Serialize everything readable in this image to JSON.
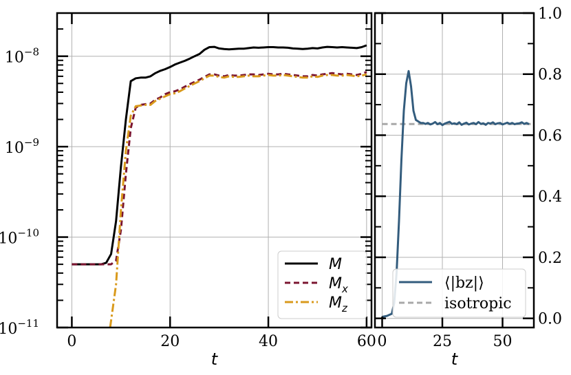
{
  "chart_data": [
    {
      "type": "line",
      "xlabel": "t",
      "ylabel": "",
      "xlim": [
        -3,
        61
      ],
      "ylim": [
        1e-11,
        3e-08
      ],
      "yscale": "log",
      "grid": true,
      "legend_position": "bottom-right",
      "xticks": [
        0,
        20,
        40,
        60
      ],
      "xtick_labels": [
        "0",
        "20",
        "40",
        "60"
      ],
      "ytick_labels": [
        {
          "value": 1e-11,
          "base": "10",
          "exp": "−11"
        },
        {
          "value": 1e-10,
          "base": "10",
          "exp": "−10"
        },
        {
          "value": 1e-09,
          "base": "10",
          "exp": "−9"
        },
        {
          "value": 1e-08,
          "base": "10",
          "exp": "−8"
        }
      ],
      "series": [
        {
          "name": "M",
          "legend_base": "M",
          "legend_sub": "",
          "color": "#000000",
          "dash": "solid",
          "points": [
            [
              0,
              5e-11
            ],
            [
              6,
              5e-11
            ],
            [
              7,
              5.2e-11
            ],
            [
              8,
              6.5e-11
            ],
            [
              9,
              1.5e-10
            ],
            [
              10,
              6e-10
            ],
            [
              11,
              2e-09
            ],
            [
              12,
              5.3e-09
            ],
            [
              13,
              5.7e-09
            ],
            [
              14,
              5.8e-09
            ],
            [
              15,
              5.8e-09
            ],
            [
              16,
              6e-09
            ],
            [
              17,
              6.5e-09
            ],
            [
              18,
              6.9e-09
            ],
            [
              19,
              7.2e-09
            ],
            [
              20,
              7.6e-09
            ],
            [
              21,
              8.1e-09
            ],
            [
              22,
              8.5e-09
            ],
            [
              23,
              8.9e-09
            ],
            [
              24,
              9.4e-09
            ],
            [
              25,
              1e-08
            ],
            [
              26,
              1.06e-08
            ],
            [
              27,
              1.18e-08
            ],
            [
              28,
              1.26e-08
            ],
            [
              29,
              1.27e-08
            ],
            [
              30,
              1.22e-08
            ],
            [
              31,
              1.2e-08
            ],
            [
              32,
              1.19e-08
            ],
            [
              33,
              1.2e-08
            ],
            [
              34,
              1.21e-08
            ],
            [
              35,
              1.21e-08
            ],
            [
              36,
              1.23e-08
            ],
            [
              37,
              1.25e-08
            ],
            [
              38,
              1.24e-08
            ],
            [
              39,
              1.25e-08
            ],
            [
              40,
              1.26e-08
            ],
            [
              41,
              1.26e-08
            ],
            [
              42,
              1.25e-08
            ],
            [
              43,
              1.25e-08
            ],
            [
              44,
              1.24e-08
            ],
            [
              45,
              1.22e-08
            ],
            [
              46,
              1.21e-08
            ],
            [
              47,
              1.2e-08
            ],
            [
              48,
              1.21e-08
            ],
            [
              49,
              1.23e-08
            ],
            [
              50,
              1.22e-08
            ],
            [
              51,
              1.25e-08
            ],
            [
              52,
              1.27e-08
            ],
            [
              53,
              1.26e-08
            ],
            [
              54,
              1.25e-08
            ],
            [
              55,
              1.26e-08
            ],
            [
              56,
              1.25e-08
            ],
            [
              57,
              1.24e-08
            ],
            [
              58,
              1.23e-08
            ],
            [
              59,
              1.26e-08
            ],
            [
              60,
              1.32e-08
            ]
          ]
        },
        {
          "name": "M_x",
          "legend_base": "M",
          "legend_sub": "x",
          "color": "#7b1530",
          "dash": "8,5",
          "points": [
            [
              0,
              5e-11
            ],
            [
              6,
              5e-11
            ],
            [
              8,
              5e-11
            ],
            [
              9,
              5.5e-11
            ],
            [
              10,
              1.2e-10
            ],
            [
              11,
              5e-10
            ],
            [
              12,
              1.6e-09
            ],
            [
              13,
              2.7e-09
            ],
            [
              14,
              2.9e-09
            ],
            [
              15,
              2.95e-09
            ],
            [
              16,
              3e-09
            ],
            [
              17,
              3.3e-09
            ],
            [
              18,
              3.5e-09
            ],
            [
              19,
              3.8e-09
            ],
            [
              20,
              4e-09
            ],
            [
              21,
              4.1e-09
            ],
            [
              22,
              4.3e-09
            ],
            [
              23,
              4.6e-09
            ],
            [
              24,
              4.9e-09
            ],
            [
              25,
              5.2e-09
            ],
            [
              26,
              5.5e-09
            ],
            [
              27,
              5.9e-09
            ],
            [
              28,
              6.3e-09
            ],
            [
              29,
              6.3e-09
            ],
            [
              30,
              6.1e-09
            ],
            [
              31,
              6e-09
            ],
            [
              32,
              6.2e-09
            ],
            [
              33,
              6.1e-09
            ],
            [
              34,
              6.1e-09
            ],
            [
              35,
              6.2e-09
            ],
            [
              36,
              6.3e-09
            ],
            [
              37,
              6.3e-09
            ],
            [
              38,
              6.2e-09
            ],
            [
              39,
              6.3e-09
            ],
            [
              40,
              6.4e-09
            ],
            [
              41,
              6.3e-09
            ],
            [
              42,
              6.3e-09
            ],
            [
              43,
              6.4e-09
            ],
            [
              44,
              6.3e-09
            ],
            [
              45,
              6.2e-09
            ],
            [
              46,
              6.1e-09
            ],
            [
              47,
              6e-09
            ],
            [
              48,
              6e-09
            ],
            [
              49,
              6.2e-09
            ],
            [
              50,
              6.1e-09
            ],
            [
              51,
              6.3e-09
            ],
            [
              52,
              6.4e-09
            ],
            [
              53,
              6.5e-09
            ],
            [
              54,
              6.4e-09
            ],
            [
              55,
              6.3e-09
            ],
            [
              56,
              6.4e-09
            ],
            [
              57,
              6.3e-09
            ],
            [
              58,
              6.2e-09
            ],
            [
              59,
              6.4e-09
            ],
            [
              60,
              6.7e-09
            ]
          ]
        },
        {
          "name": "M_z",
          "legend_base": "M",
          "legend_sub": "z",
          "color": "#d99a1c",
          "dash": "12,4,3,4",
          "points": [
            [
              7.8,
              1e-11
            ],
            [
              9,
              3e-11
            ],
            [
              10,
              2e-10
            ],
            [
              11,
              9e-10
            ],
            [
              12,
              2.2e-09
            ],
            [
              13,
              2.8e-09
            ],
            [
              14,
              2.85e-09
            ],
            [
              15,
              2.9e-09
            ],
            [
              16,
              2.9e-09
            ],
            [
              17,
              3.2e-09
            ],
            [
              18,
              3.4e-09
            ],
            [
              19,
              3.6e-09
            ],
            [
              20,
              3.8e-09
            ],
            [
              21,
              3.9e-09
            ],
            [
              22,
              4.1e-09
            ],
            [
              23,
              4.4e-09
            ],
            [
              24,
              4.7e-09
            ],
            [
              25,
              5e-09
            ],
            [
              26,
              5.3e-09
            ],
            [
              27,
              5.7e-09
            ],
            [
              28,
              6.1e-09
            ],
            [
              29,
              6.1e-09
            ],
            [
              30,
              5.9e-09
            ],
            [
              31,
              5.8e-09
            ],
            [
              32,
              6e-09
            ],
            [
              33,
              5.9e-09
            ],
            [
              34,
              5.9e-09
            ],
            [
              35,
              6e-09
            ],
            [
              36,
              6.1e-09
            ],
            [
              37,
              6e-09
            ],
            [
              38,
              6e-09
            ],
            [
              39,
              6.1e-09
            ],
            [
              40,
              6.2e-09
            ],
            [
              41,
              6.1e-09
            ],
            [
              42,
              6.1e-09
            ],
            [
              43,
              6.2e-09
            ],
            [
              44,
              6.1e-09
            ],
            [
              45,
              6e-09
            ],
            [
              46,
              5.9e-09
            ],
            [
              47,
              5.8e-09
            ],
            [
              48,
              5.8e-09
            ],
            [
              49,
              6e-09
            ],
            [
              50,
              5.9e-09
            ],
            [
              51,
              6.1e-09
            ],
            [
              52,
              6.2e-09
            ],
            [
              53,
              6.2e-09
            ],
            [
              54,
              6.1e-09
            ],
            [
              55,
              6.1e-09
            ],
            [
              56,
              6.2e-09
            ],
            [
              57,
              6.1e-09
            ],
            [
              58,
              6e-09
            ],
            [
              59,
              6.1e-09
            ],
            [
              60,
              6.3e-09
            ]
          ]
        }
      ]
    },
    {
      "type": "line",
      "xlabel": "t",
      "ylabel": "",
      "xlim": [
        -3,
        63
      ],
      "ylim": [
        -0.03,
        1.0
      ],
      "yscale": "linear",
      "yaxis_side": "right",
      "grid": true,
      "legend_position": "bottom-right",
      "xticks": [
        0,
        25,
        50
      ],
      "xtick_labels": [
        "0",
        "25",
        "50"
      ],
      "yticks": [
        0.0,
        0.2,
        0.4,
        0.6,
        0.8,
        1.0
      ],
      "ytick_labels": [
        "0.0",
        "0.2",
        "0.4",
        "0.6",
        "0.8",
        "1.0"
      ],
      "series": [
        {
          "name": "⟨|b_z|⟩",
          "legend_label": "⟨|bz|⟩",
          "color": "#335c7d",
          "dash": "solid",
          "points": [
            [
              0,
              0.005
            ],
            [
              2,
              0.008
            ],
            [
              4,
              0.015
            ],
            [
              5,
              0.05
            ],
            [
              6,
              0.15
            ],
            [
              7,
              0.32
            ],
            [
              8,
              0.52
            ],
            [
              9,
              0.68
            ],
            [
              10,
              0.77
            ],
            [
              11,
              0.81
            ],
            [
              12,
              0.76
            ],
            [
              13,
              0.68
            ],
            [
              14,
              0.65
            ],
            [
              15,
              0.645
            ],
            [
              16,
              0.64
            ],
            [
              17,
              0.64
            ],
            [
              18,
              0.637
            ],
            [
              19,
              0.64
            ],
            [
              20,
              0.635
            ],
            [
              21,
              0.638
            ],
            [
              22,
              0.643
            ],
            [
              23,
              0.636
            ],
            [
              24,
              0.64
            ],
            [
              25,
              0.633
            ],
            [
              26,
              0.638
            ],
            [
              27,
              0.641
            ],
            [
              28,
              0.644
            ],
            [
              29,
              0.637
            ],
            [
              30,
              0.639
            ],
            [
              31,
              0.636
            ],
            [
              32,
              0.642
            ],
            [
              33,
              0.634
            ],
            [
              34,
              0.638
            ],
            [
              35,
              0.641
            ],
            [
              36,
              0.635
            ],
            [
              37,
              0.638
            ],
            [
              38,
              0.64
            ],
            [
              39,
              0.636
            ],
            [
              40,
              0.643
            ],
            [
              41,
              0.637
            ],
            [
              42,
              0.639
            ],
            [
              43,
              0.634
            ],
            [
              44,
              0.64
            ],
            [
              45,
              0.638
            ],
            [
              46,
              0.642
            ],
            [
              47,
              0.636
            ],
            [
              48,
              0.639
            ],
            [
              49,
              0.64
            ],
            [
              50,
              0.635
            ],
            [
              51,
              0.638
            ],
            [
              52,
              0.641
            ],
            [
              53,
              0.637
            ],
            [
              54,
              0.64
            ],
            [
              55,
              0.636
            ],
            [
              56,
              0.638
            ],
            [
              57,
              0.639
            ],
            [
              58,
              0.642
            ],
            [
              59,
              0.637
            ],
            [
              60,
              0.64
            ],
            [
              61,
              0.636
            ]
          ]
        },
        {
          "name": "isotropic",
          "legend_label": "isotropic",
          "color": "#a8a8a8",
          "dash": "8,5",
          "points": [
            [
              0,
              0.6366
            ],
            [
              63,
              0.6366
            ]
          ]
        }
      ]
    }
  ]
}
